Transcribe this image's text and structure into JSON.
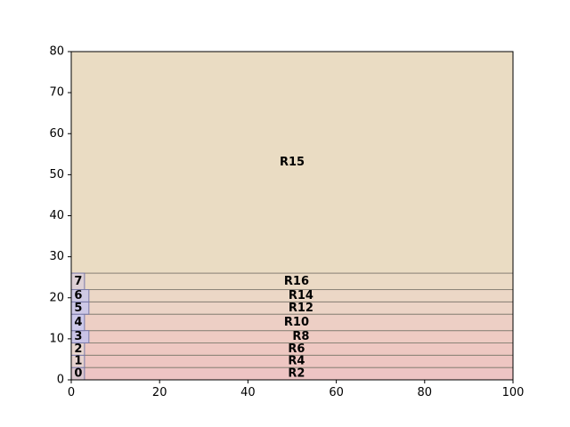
{
  "chart_data": {
    "type": "area",
    "title": "",
    "xlabel": "",
    "ylabel": "",
    "xlim": [
      0,
      100
    ],
    "ylim": [
      0,
      80
    ],
    "x_ticks": [
      "0",
      "20",
      "40",
      "60",
      "80",
      "100"
    ],
    "y_ticks": [
      "0",
      "10",
      "20",
      "30",
      "40",
      "50",
      "60",
      "70",
      "80"
    ],
    "grid": false,
    "regions": [
      {
        "label": "R2",
        "x0": 0,
        "x1": 100,
        "y0": 0,
        "y1": 3,
        "color": "#eec4c4"
      },
      {
        "label": "R4",
        "x0": 0,
        "x1": 100,
        "y0": 3,
        "y1": 6,
        "color": "#eec6c2"
      },
      {
        "label": "R6",
        "x0": 0,
        "x1": 100,
        "y0": 6,
        "y1": 9,
        "color": "#eec8c2"
      },
      {
        "label": "R8",
        "x0": 0,
        "x1": 100,
        "y0": 9,
        "y1": 12,
        "color": "#eecbc3"
      },
      {
        "label": "R10",
        "x0": 0,
        "x1": 100,
        "y0": 12,
        "y1": 16,
        "color": "#edcfc5"
      },
      {
        "label": "R12",
        "x0": 0,
        "x1": 100,
        "y0": 16,
        "y1": 19,
        "color": "#ecd4c6"
      },
      {
        "label": "R14",
        "x0": 0,
        "x1": 100,
        "y0": 19,
        "y1": 22,
        "color": "#ecd7c6"
      },
      {
        "label": "R16",
        "x0": 0,
        "x1": 100,
        "y0": 22,
        "y1": 26,
        "color": "#ebdac5"
      },
      {
        "label": "R15",
        "x0": 0,
        "x1": 100,
        "y0": 26,
        "y1": 80,
        "color": "#eadcc3"
      }
    ],
    "side_boxes": [
      {
        "label": "0",
        "x0": 0,
        "x1": 3,
        "y0": 0,
        "y1": 3,
        "color": "#dcc6cf"
      },
      {
        "label": "1",
        "x0": 0,
        "x1": 3,
        "y0": 3,
        "y1": 6,
        "color": "#e6d2ce"
      },
      {
        "label": "2",
        "x0": 0,
        "x1": 3,
        "y0": 6,
        "y1": 9,
        "color": "#e8d6cf"
      },
      {
        "label": "3",
        "x0": 0,
        "x1": 4,
        "y0": 9,
        "y1": 12,
        "color": "#c9c3e6"
      },
      {
        "label": "4",
        "x0": 0,
        "x1": 3,
        "y0": 12,
        "y1": 16,
        "color": "#cdc9ea"
      },
      {
        "label": "5",
        "x0": 0,
        "x1": 4,
        "y0": 16,
        "y1": 19,
        "color": "#cdc8e6"
      },
      {
        "label": "6",
        "x0": 0,
        "x1": 4,
        "y0": 19,
        "y1": 22,
        "color": "#cfcae4"
      },
      {
        "label": "7",
        "x0": 0,
        "x1": 3,
        "y0": 22,
        "y1": 26,
        "color": "#ddd0d6"
      }
    ]
  }
}
